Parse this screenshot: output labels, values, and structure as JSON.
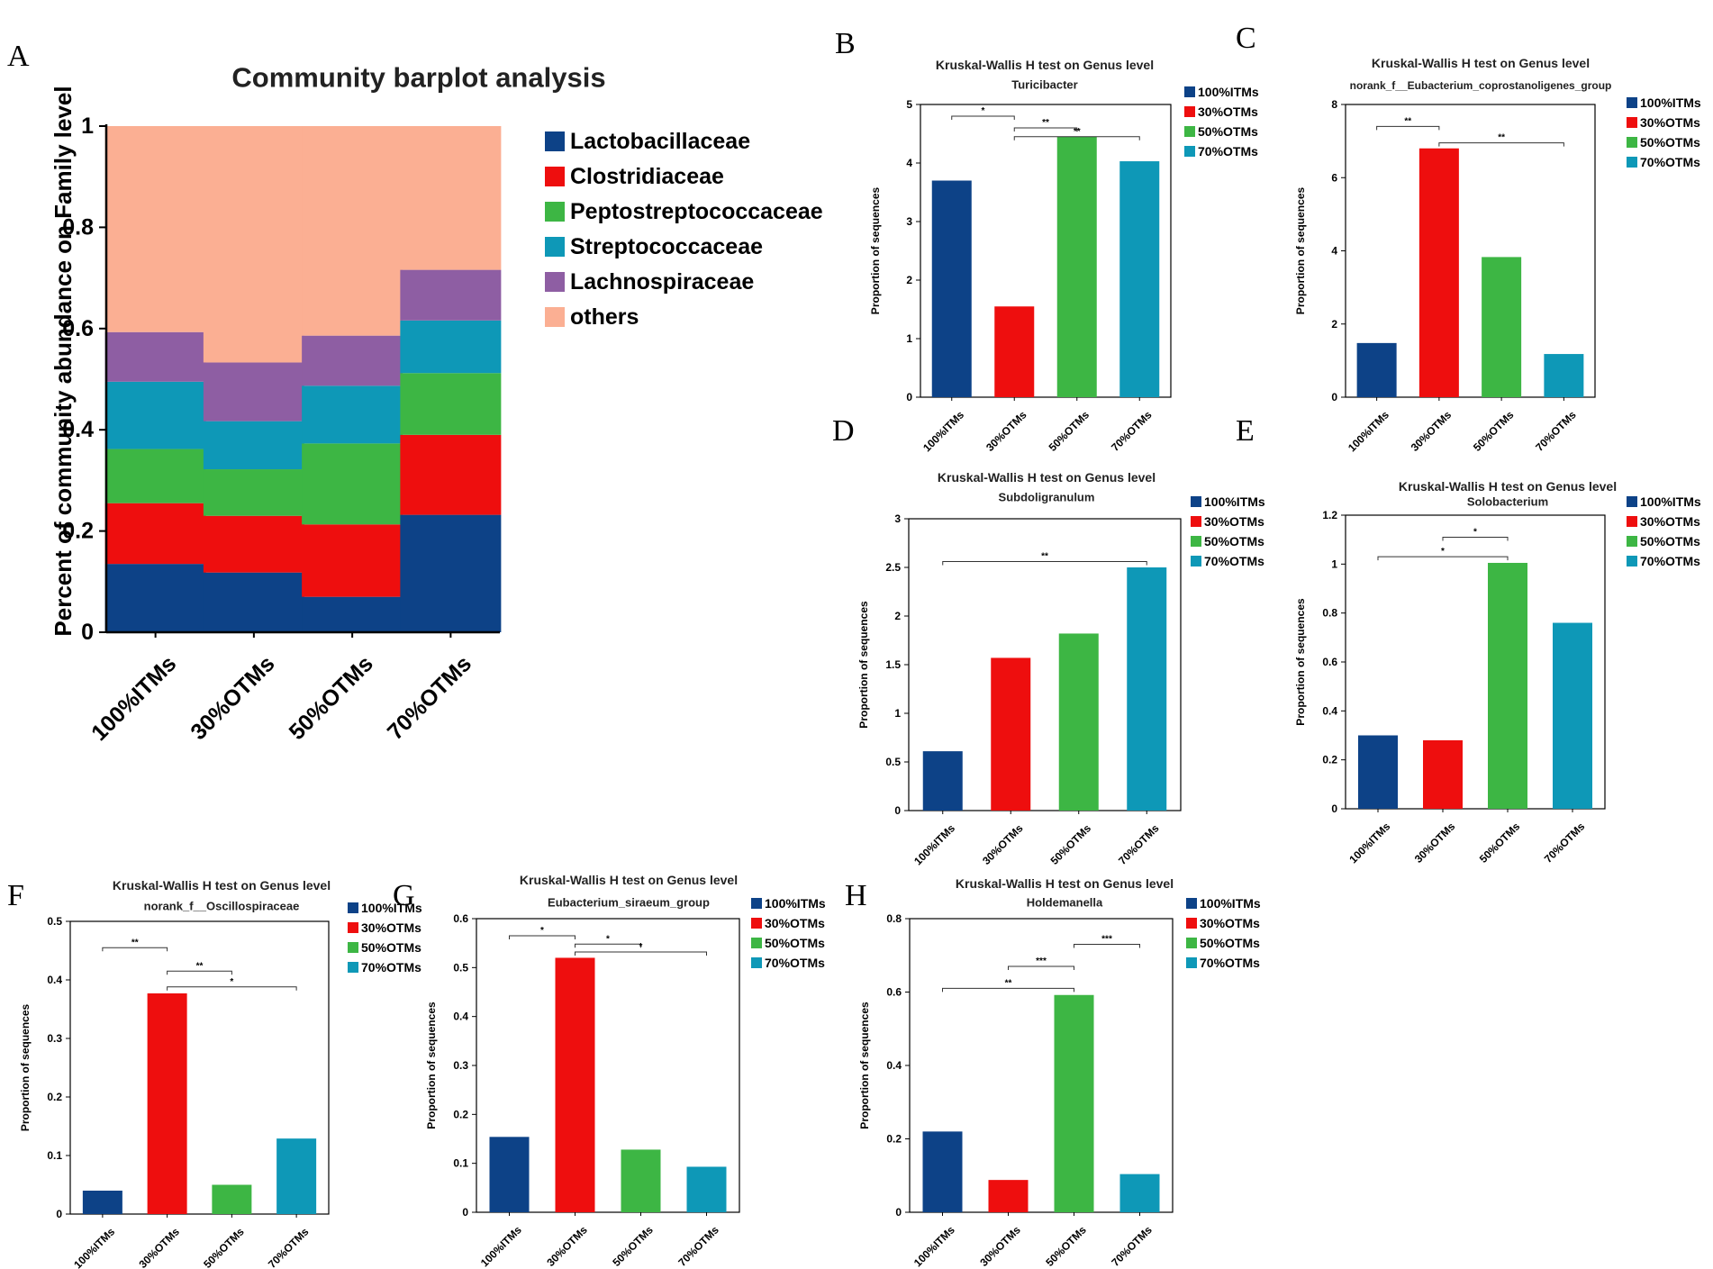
{
  "colors": {
    "100%ITMs": "#0d4287",
    "30%OTMs": "#ee0e0e",
    "50%OTMs": "#3db644",
    "70%OTMs": "#0e98b7",
    "Lactobacillaceae": "#0d4287",
    "Clostridiaceae": "#ee0e0e",
    "Peptostreptococcaceae": "#3db644",
    "Streptococcaceae": "#0e98b7",
    "Lachnospiraceae": "#8e5ea3",
    "others": "#fbaf93"
  },
  "chart_data": [
    {
      "id": "A",
      "panel_label": "A",
      "type": "bar",
      "stacked": true,
      "title": "Community barplot analysis",
      "xlabel": "",
      "ylabel": "Percent of community abundance on Family level",
      "categories": [
        "100%ITMs",
        "30%OTMs",
        "50%OTMs",
        "70%OTMs"
      ],
      "yticks": [
        "0",
        "0.2",
        "0.4",
        "0.6",
        "0.8",
        "1"
      ],
      "ylim": [
        0,
        1
      ],
      "legend_position": "right",
      "series": [
        {
          "name": "Lactobacillaceae",
          "values": [
            0.135,
            0.118,
            0.07,
            0.232
          ]
        },
        {
          "name": "Clostridiaceae",
          "values": [
            0.12,
            0.112,
            0.143,
            0.158
          ]
        },
        {
          "name": "Peptostreptococcaceae",
          "values": [
            0.107,
            0.092,
            0.16,
            0.122
          ]
        },
        {
          "name": "Streptococcaceae",
          "values": [
            0.133,
            0.095,
            0.114,
            0.104
          ]
        },
        {
          "name": "Lachnospiraceae",
          "values": [
            0.098,
            0.116,
            0.099,
            0.1
          ]
        },
        {
          "name": "others",
          "values": [
            0.407,
            0.467,
            0.414,
            0.284
          ]
        }
      ]
    },
    {
      "id": "B",
      "panel_label": "B",
      "type": "bar",
      "title": "Kruskal-Wallis H test on Genus level",
      "subtitle": "Turicibacter",
      "ylabel": "Proportion of sequences",
      "xlabel": "",
      "categories": [
        "100%ITMs",
        "30%OTMs",
        "50%OTMs",
        "70%OTMs"
      ],
      "values": [
        3.7,
        1.55,
        4.45,
        4.03
      ],
      "ylim": [
        0,
        5
      ],
      "yticks": [
        "0",
        "1",
        "2",
        "3",
        "4",
        "5"
      ],
      "significance": [
        {
          "from": 0,
          "to": 1,
          "label": "*",
          "y": 4.8
        },
        {
          "from": 1,
          "to": 2,
          "label": "**",
          "y": 4.6
        },
        {
          "from": 1,
          "to": 3,
          "label": "**",
          "y": 4.45
        }
      ]
    },
    {
      "id": "C",
      "panel_label": "C",
      "type": "bar",
      "title": "Kruskal-Wallis H test on Genus level",
      "subtitle": "norank_f__Eubacterium_coprostanoligenes_group",
      "ylabel": "Proportion of sequences",
      "xlabel": "",
      "categories": [
        "100%ITMs",
        "30%OTMs",
        "50%OTMs",
        "70%OTMs"
      ],
      "values": [
        1.48,
        6.8,
        3.83,
        1.18
      ],
      "ylim": [
        0,
        8
      ],
      "yticks": [
        "0",
        "2",
        "4",
        "6",
        "8"
      ],
      "significance": [
        {
          "from": 0,
          "to": 1,
          "label": "**",
          "y": 7.4
        },
        {
          "from": 1,
          "to": 3,
          "label": "**",
          "y": 6.95
        }
      ]
    },
    {
      "id": "D",
      "panel_label": "D",
      "type": "bar",
      "title": "Kruskal-Wallis H test on Genus level",
      "subtitle": "Subdoligranulum",
      "ylabel": "Proportion of sequences",
      "xlabel": "",
      "categories": [
        "100%ITMs",
        "30%OTMs",
        "50%OTMs",
        "70%OTMs"
      ],
      "values": [
        0.61,
        1.57,
        1.82,
        2.5
      ],
      "ylim": [
        0,
        3
      ],
      "yticks": [
        "0",
        "0.5",
        "1",
        "1.5",
        "2",
        "2.5",
        "3"
      ],
      "significance": [
        {
          "from": 0,
          "to": 3,
          "label": "**",
          "y": 2.56
        }
      ]
    },
    {
      "id": "E",
      "panel_label": "E",
      "type": "bar",
      "title": "Kruskal-Wallis H test on Genus level",
      "subtitle": "Solobacterium",
      "ylabel": "Proportion of sequences",
      "xlabel": "",
      "categories": [
        "100%ITMs",
        "30%OTMs",
        "50%OTMs",
        "70%OTMs"
      ],
      "values": [
        0.3,
        0.28,
        1.005,
        0.76
      ],
      "ylim": [
        0,
        1.2
      ],
      "yticks": [
        "0",
        "0.2",
        "0.4",
        "0.6",
        "0.8",
        "1",
        "1.2"
      ],
      "significance": [
        {
          "from": 1,
          "to": 2,
          "label": "*",
          "y": 1.11
        },
        {
          "from": 0,
          "to": 2,
          "label": "*",
          "y": 1.03
        }
      ]
    },
    {
      "id": "F",
      "panel_label": "F",
      "type": "bar",
      "title": "Kruskal-Wallis H test on Genus level",
      "subtitle": "norank_f__Oscillospiraceae",
      "ylabel": "Proportion of sequences",
      "xlabel": "",
      "categories": [
        "100%ITMs",
        "30%OTMs",
        "50%OTMs",
        "70%OTMs"
      ],
      "values": [
        0.04,
        0.377,
        0.05,
        0.129
      ],
      "ylim": [
        0,
        0.5
      ],
      "yticks": [
        "0",
        "0.1",
        "0.2",
        "0.3",
        "0.4",
        "0.5"
      ],
      "significance": [
        {
          "from": 0,
          "to": 1,
          "label": "**",
          "y": 0.455
        },
        {
          "from": 1,
          "to": 2,
          "label": "**",
          "y": 0.415
        },
        {
          "from": 1,
          "to": 3,
          "label": "*",
          "y": 0.388
        }
      ]
    },
    {
      "id": "G",
      "panel_label": "G",
      "type": "bar",
      "title": "Kruskal-Wallis H test on Genus level",
      "subtitle": "Eubacterium_siraeum_group",
      "ylabel": "Proportion of sequences",
      "xlabel": "",
      "categories": [
        "100%ITMs",
        "30%OTMs",
        "50%OTMs",
        "70%OTMs"
      ],
      "values": [
        0.154,
        0.52,
        0.128,
        0.093
      ],
      "ylim": [
        0,
        0.6
      ],
      "yticks": [
        "0",
        "0.1",
        "0.2",
        "0.3",
        "0.4",
        "0.5",
        "0.6"
      ],
      "significance": [
        {
          "from": 0,
          "to": 1,
          "label": "*",
          "y": 0.565
        },
        {
          "from": 1,
          "to": 2,
          "label": "*",
          "y": 0.548
        },
        {
          "from": 1,
          "to": 3,
          "label": "*",
          "y": 0.532
        }
      ]
    },
    {
      "id": "H",
      "panel_label": "H",
      "type": "bar",
      "title": "Kruskal-Wallis H test on Genus level",
      "subtitle": "Holdemanella",
      "ylabel": "Proportion of sequences",
      "xlabel": "",
      "categories": [
        "100%ITMs",
        "30%OTMs",
        "50%OTMs",
        "70%OTMs"
      ],
      "values": [
        0.22,
        0.088,
        0.592,
        0.104
      ],
      "ylim": [
        0,
        0.8
      ],
      "yticks": [
        "0",
        "0.2",
        "0.4",
        "0.6",
        "0.8"
      ],
      "significance": [
        {
          "from": 2,
          "to": 3,
          "label": "***",
          "y": 0.73
        },
        {
          "from": 1,
          "to": 2,
          "label": "***",
          "y": 0.67
        },
        {
          "from": 0,
          "to": 2,
          "label": "**",
          "y": 0.61
        }
      ]
    }
  ]
}
